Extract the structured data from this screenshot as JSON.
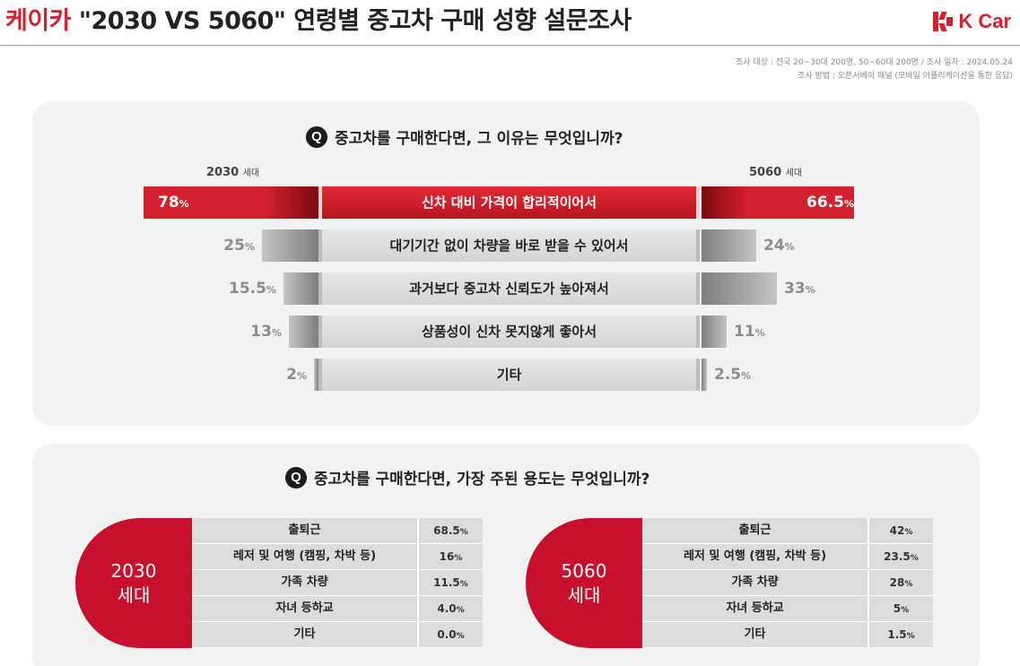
{
  "header": {
    "brand": "케이카",
    "title_rest": " \"2030 VS 5060\" 연령별 중고차 구매 성향 설문조사",
    "logo_text": "K Car",
    "survey_line1": "조사 대상 : 전국 20~30대 200명, 50~60대 200명 / 조사 일자 : 2024.05.24",
    "survey_line2": "조사 방법 : 오픈서베이 패널 (모바일 어플리케이션을 통한 응답)"
  },
  "colors": {
    "brand_red": "#d4202f",
    "dark_red": "#c8102e",
    "gray_bar": "#8f8f8f",
    "panel_bg": "#f2f2f2"
  },
  "chart_data": [
    {
      "type": "bar",
      "orientation": "diverging-horizontal",
      "title": "중고차를 구매한다면, 그 이유는 무엇입니까?",
      "q_icon": "Q",
      "left_group": {
        "number": "2030",
        "suffix": "세대"
      },
      "right_group": {
        "number": "5060",
        "suffix": "세대"
      },
      "unit": "%",
      "categories": [
        "신차 대비 가격이 합리적이어서",
        "대기기간 없이 차량을 바로 받을 수 있어서",
        "과거보다 중고차 신뢰도가 높아져서",
        "상품성이 신차 못지않게 좋아서",
        "기타"
      ],
      "series": [
        {
          "name": "2030 세대",
          "values": [
            78,
            25,
            15.5,
            13,
            2
          ],
          "labels": [
            "78",
            "25",
            "15.5",
            "13",
            "2"
          ]
        },
        {
          "name": "5060 세대",
          "values": [
            66.5,
            24,
            33,
            11,
            2.5
          ],
          "labels": [
            "66.5",
            "24",
            "33",
            "11",
            "2.5"
          ]
        }
      ]
    },
    {
      "type": "table",
      "title": "중고차를 구매한다면, 가장 주된 용도는 무엇입니까?",
      "q_icon": "Q",
      "categories": [
        "출퇴근",
        "레저 및 여행 (캠핑, 차박 등)",
        "가족 차량",
        "자녀 등하교",
        "기타"
      ],
      "series": [
        {
          "name": "2030 세대",
          "number": "2030",
          "suffix": "세대",
          "values": [
            68.5,
            16,
            11.5,
            4.0,
            0.0
          ],
          "labels": [
            "68.5",
            "16",
            "11.5",
            "4.0",
            "0.0"
          ]
        },
        {
          "name": "5060 세대",
          "number": "5060",
          "suffix": "세대",
          "values": [
            42,
            23.5,
            28,
            5,
            1.5
          ],
          "labels": [
            "42",
            "23.5",
            "28",
            "5",
            "1.5"
          ]
        }
      ],
      "unit": "%"
    }
  ]
}
